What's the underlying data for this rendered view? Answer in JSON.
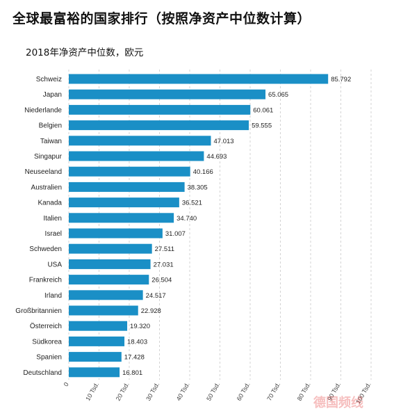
{
  "title": "全球最富裕的国家排行（按照净资产中位数计算）",
  "subtitle": "2018年净资产中位数，欧元",
  "watermark": "德国频线",
  "colors": {
    "bar": "#1a8fc6",
    "grid": "#c9c9c9"
  },
  "chart_data": {
    "type": "bar",
    "orientation": "horizontal",
    "title": "全球最富裕的国家排行（按照净资产中位数计算）",
    "subtitle": "2018年净资产中位数，欧元",
    "categories": [
      "Schweiz",
      "Japan",
      "Niederlande",
      "Belgien",
      "Taiwan",
      "Singapur",
      "Neuseeland",
      "Australien",
      "Kanada",
      "Italien",
      "Israel",
      "Schweden",
      "USA",
      "Frankreich",
      "Irland",
      "Großbritannien",
      "Österreich",
      "Südkorea",
      "Spanien",
      "Deutschland"
    ],
    "values": [
      85.792,
      65.065,
      60.061,
      59.555,
      47.013,
      44.693,
      40.166,
      38.305,
      36.521,
      34.74,
      31.007,
      27.511,
      27.031,
      26.504,
      24.517,
      22.928,
      19.32,
      18.403,
      17.428,
      16.801
    ],
    "value_labels": [
      "85.792",
      "65.065",
      "60.061",
      "59.555",
      "47.013",
      "44.693",
      "40.166",
      "38.305",
      "36.521",
      "34.740",
      "31.007",
      "27.511",
      "27.031",
      "26.504",
      "24.517",
      "22.928",
      "19.320",
      "18.403",
      "17.428",
      "16.801"
    ],
    "xlim": [
      0,
      100
    ],
    "xticks": [
      0,
      10,
      20,
      30,
      40,
      50,
      60,
      70,
      80,
      90,
      100
    ],
    "xtick_labels": [
      "0",
      "10 Tsd.",
      "20 Tsd.",
      "30 Tsd.",
      "40 Tsd.",
      "50 Tsd.",
      "60 Tsd.",
      "70 Tsd.",
      "80 Tsd.",
      "90 Tsd.",
      "100 Tsd."
    ],
    "grid": true,
    "legend": "none"
  }
}
